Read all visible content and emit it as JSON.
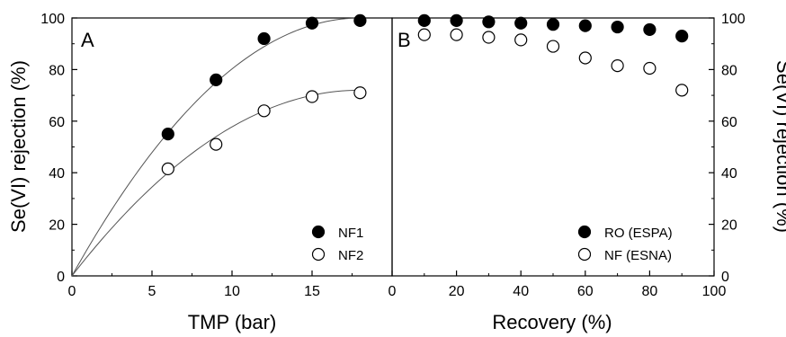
{
  "chart_data": [
    {
      "panel": "A",
      "type": "scatter",
      "xlabel": "TMP (bar)",
      "ylabel": "Se(VI) rejection (%)",
      "xlim": [
        0,
        20
      ],
      "ylim": [
        0,
        100
      ],
      "xticks": [
        0,
        5,
        10,
        15
      ],
      "yticks": [
        0,
        20,
        40,
        60,
        80,
        100
      ],
      "grid": false,
      "legend_position": "bottom-right",
      "fit_curves": true,
      "series": [
        {
          "name": "NF1",
          "marker": "filled-circle",
          "x": [
            6,
            9,
            12,
            15,
            18
          ],
          "y": [
            55,
            76,
            92,
            98,
            99
          ],
          "fit_ymax": 100
        },
        {
          "name": "NF2",
          "marker": "open-circle",
          "x": [
            6,
            9,
            12,
            15,
            18
          ],
          "y": [
            41.5,
            51,
            64,
            69.5,
            71
          ],
          "fit_ymax": 72
        }
      ]
    },
    {
      "panel": "B",
      "type": "scatter",
      "xlabel": "Recovery (%)",
      "ylabel": "Se(VI) rejection (%)",
      "xlim": [
        0,
        100
      ],
      "ylim": [
        0,
        100
      ],
      "xticks": [
        0,
        20,
        40,
        60,
        80,
        100
      ],
      "yticks": [
        0,
        20,
        40,
        60,
        80,
        100
      ],
      "grid": false,
      "legend_position": "bottom-right",
      "series": [
        {
          "name": "RO (ESPA)",
          "marker": "filled-circle",
          "x": [
            10,
            20,
            30,
            40,
            50,
            60,
            70,
            80,
            90
          ],
          "y": [
            99,
            99,
            98.5,
            98,
            97.5,
            97,
            96.5,
            95.5,
            93
          ]
        },
        {
          "name": "NF (ESNA)",
          "marker": "open-circle",
          "x": [
            10,
            20,
            30,
            40,
            50,
            60,
            70,
            80,
            90
          ],
          "y": [
            93.5,
            93.5,
            92.5,
            91.5,
            89,
            84.5,
            81.5,
            80.5,
            72
          ]
        }
      ]
    }
  ]
}
